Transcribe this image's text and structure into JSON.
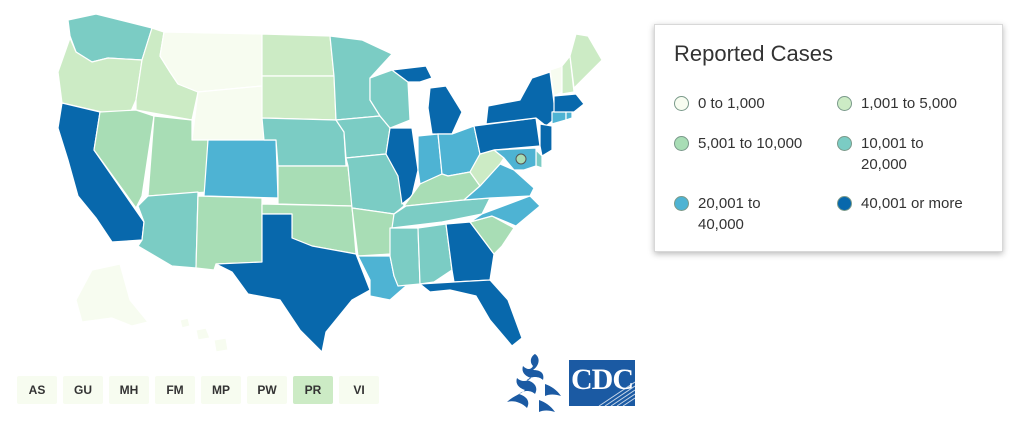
{
  "legend": {
    "title": "Reported Cases",
    "bins": [
      {
        "label": "0 to 1,000",
        "color": "#f7fcf0"
      },
      {
        "label": "1,001 to 5,000",
        "color": "#ccebc5"
      },
      {
        "label": "5,001 to 10,000",
        "color": "#a8ddb5"
      },
      {
        "label": "10,001 to\n20,000",
        "color": "#7bccc4"
      },
      {
        "label": "20,001 to\n40,000",
        "color": "#4eb3d3"
      },
      {
        "label": "40,001 or more",
        "color": "#0868ac"
      }
    ]
  },
  "map_data": {
    "states": [
      {
        "id": "WA",
        "bin": 3
      },
      {
        "id": "OR",
        "bin": 1
      },
      {
        "id": "CA",
        "bin": 5
      },
      {
        "id": "ID",
        "bin": 1
      },
      {
        "id": "NV",
        "bin": 2
      },
      {
        "id": "MT",
        "bin": 0
      },
      {
        "id": "WY",
        "bin": 0
      },
      {
        "id": "UT",
        "bin": 2
      },
      {
        "id": "AZ",
        "bin": 3
      },
      {
        "id": "CO",
        "bin": 4
      },
      {
        "id": "NM",
        "bin": 2
      },
      {
        "id": "ND",
        "bin": 1
      },
      {
        "id": "SD",
        "bin": 1
      },
      {
        "id": "NE",
        "bin": 3
      },
      {
        "id": "KS",
        "bin": 2
      },
      {
        "id": "OK",
        "bin": 2
      },
      {
        "id": "TX",
        "bin": 5
      },
      {
        "id": "MN",
        "bin": 3
      },
      {
        "id": "IA",
        "bin": 3
      },
      {
        "id": "MO",
        "bin": 3
      },
      {
        "id": "AR",
        "bin": 2
      },
      {
        "id": "LA",
        "bin": 4
      },
      {
        "id": "WI",
        "bin": 3
      },
      {
        "id": "IL",
        "bin": 5
      },
      {
        "id": "MI",
        "bin": 5
      },
      {
        "id": "IN",
        "bin": 4
      },
      {
        "id": "OH",
        "bin": 4
      },
      {
        "id": "KY",
        "bin": 2
      },
      {
        "id": "TN",
        "bin": 3
      },
      {
        "id": "MS",
        "bin": 3
      },
      {
        "id": "AL",
        "bin": 3
      },
      {
        "id": "GA",
        "bin": 5
      },
      {
        "id": "FL",
        "bin": 5
      },
      {
        "id": "SC",
        "bin": 2
      },
      {
        "id": "NC",
        "bin": 4
      },
      {
        "id": "VA",
        "bin": 4
      },
      {
        "id": "WV",
        "bin": 1
      },
      {
        "id": "PA",
        "bin": 5
      },
      {
        "id": "NY",
        "bin": 5
      },
      {
        "id": "NJ",
        "bin": 5
      },
      {
        "id": "DE",
        "bin": 3
      },
      {
        "id": "MD",
        "bin": 4
      },
      {
        "id": "DC",
        "bin": 2
      },
      {
        "id": "CT",
        "bin": 4
      },
      {
        "id": "RI",
        "bin": 4
      },
      {
        "id": "MA",
        "bin": 5
      },
      {
        "id": "VT",
        "bin": 0
      },
      {
        "id": "NH",
        "bin": 1
      },
      {
        "id": "ME",
        "bin": 1
      },
      {
        "id": "AK",
        "bin": 0
      },
      {
        "id": "HI",
        "bin": 0
      }
    ]
  },
  "territories": [
    {
      "label": "AS",
      "color": "#f7fcf0"
    },
    {
      "label": "GU",
      "color": "#f7fcf0"
    },
    {
      "label": "MH",
      "color": "#f7fcf0"
    },
    {
      "label": "FM",
      "color": "#f7fcf0"
    },
    {
      "label": "MP",
      "color": "#f7fcf0"
    },
    {
      "label": "PW",
      "color": "#f7fcf0"
    },
    {
      "label": "PR",
      "color": "#ccebc5"
    },
    {
      "label": "VI",
      "color": "#f7fcf0"
    }
  ],
  "logos": {
    "hhs_icon": "hhs-eagle-icon",
    "cdc_logo_text": "CDC",
    "cdc_color": "#1b5aa3"
  }
}
